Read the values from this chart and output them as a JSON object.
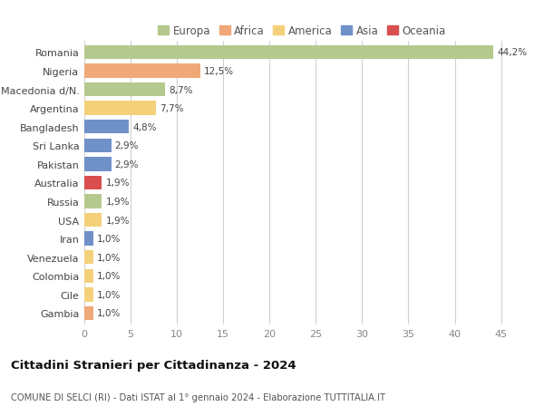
{
  "countries": [
    "Romania",
    "Nigeria",
    "Macedonia d/N.",
    "Argentina",
    "Bangladesh",
    "Sri Lanka",
    "Pakistan",
    "Australia",
    "Russia",
    "USA",
    "Iran",
    "Venezuela",
    "Colombia",
    "Cile",
    "Gambia"
  ],
  "values": [
    44.2,
    12.5,
    8.7,
    7.7,
    4.8,
    2.9,
    2.9,
    1.9,
    1.9,
    1.9,
    1.0,
    1.0,
    1.0,
    1.0,
    1.0
  ],
  "labels": [
    "44,2%",
    "12,5%",
    "8,7%",
    "7,7%",
    "4,8%",
    "2,9%",
    "2,9%",
    "1,9%",
    "1,9%",
    "1,9%",
    "1,0%",
    "1,0%",
    "1,0%",
    "1,0%",
    "1,0%"
  ],
  "colors": [
    "#b5c98e",
    "#f0a878",
    "#b5c98e",
    "#f5d07a",
    "#7090c8",
    "#7090c8",
    "#7090c8",
    "#d94f4f",
    "#b5c98e",
    "#f5d07a",
    "#7090c8",
    "#f5d07a",
    "#f5d07a",
    "#f5d07a",
    "#f0a878"
  ],
  "legend_labels": [
    "Europa",
    "Africa",
    "America",
    "Asia",
    "Oceania"
  ],
  "legend_colors": [
    "#b5c98e",
    "#f0a878",
    "#f5d07a",
    "#7090c8",
    "#d94f4f"
  ],
  "title": "Cittadini Stranieri per Cittadinanza - 2024",
  "subtitle": "COMUNE DI SELCI (RI) - Dati ISTAT al 1° gennaio 2024 - Elaborazione TUTTITALIA.IT",
  "xlim": [
    0,
    47
  ],
  "xticks": [
    0,
    5,
    10,
    15,
    20,
    25,
    30,
    35,
    40,
    45
  ],
  "bg_color": "#ffffff",
  "grid_color": "#d0d0d0",
  "bar_height": 0.75
}
